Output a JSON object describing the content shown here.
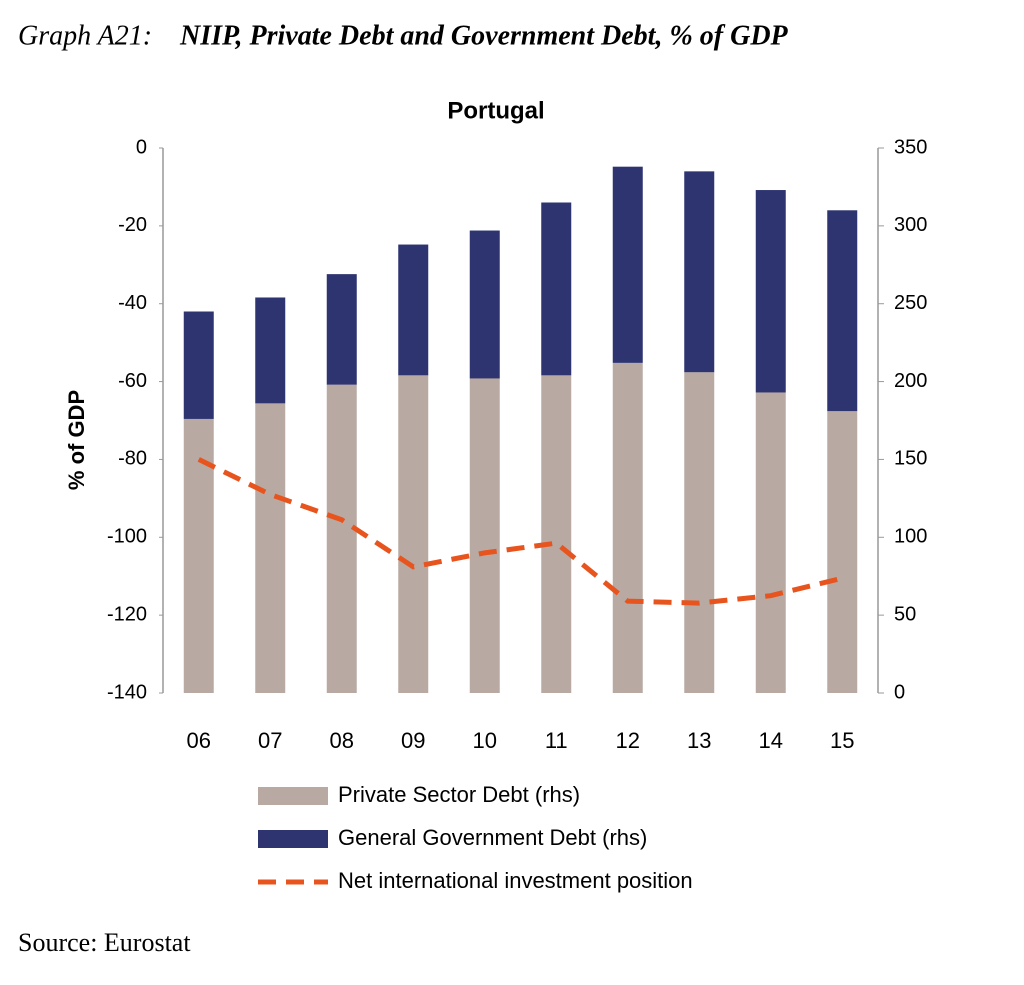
{
  "header": {
    "label": "Graph A21:",
    "title": "NIIP, Private Debt and Government Debt, % of GDP"
  },
  "chart_data": {
    "type": "bar-line",
    "title": "Portugal",
    "ylabel": "% of GDP",
    "categories": [
      "06",
      "07",
      "08",
      "09",
      "10",
      "11",
      "12",
      "13",
      "14",
      "15"
    ],
    "ylim": [
      -140,
      0
    ],
    "yticks": [
      0,
      -20,
      -40,
      -60,
      -80,
      -100,
      -120,
      -140
    ],
    "y2lim": [
      0,
      350
    ],
    "y2ticks": [
      0,
      50,
      100,
      150,
      200,
      250,
      300,
      350
    ],
    "series": [
      {
        "name": "Private Sector Debt (rhs)",
        "color": "#b8aaa2",
        "kind": "bar",
        "axis": "y2",
        "values": [
          176,
          186,
          198,
          204,
          202,
          204,
          212,
          206,
          193,
          181
        ]
      },
      {
        "name": "General Government Debt (rhs)",
        "color": "#2e3470",
        "kind": "bar",
        "axis": "y2",
        "values": [
          69,
          68,
          71,
          84,
          95,
          111,
          126,
          129,
          130,
          129
        ]
      },
      {
        "name": "Net international investment position",
        "color": "#e8541e",
        "kind": "line",
        "values": [
          -80,
          -89,
          -95.5,
          -107.6,
          -104,
          -101.5,
          -116.4,
          -116.9,
          -115,
          -110.5
        ]
      }
    ]
  },
  "source": "Source: Eurostat"
}
